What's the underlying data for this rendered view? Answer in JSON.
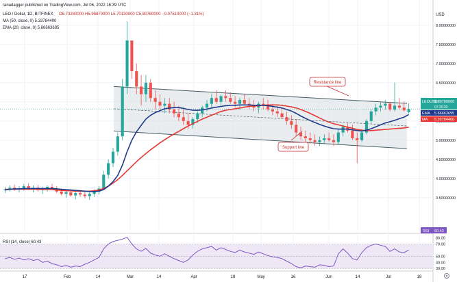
{
  "header": {
    "published": "ranadagger published on TradingView.com, Jul 06, 2022 16:39 UTC",
    "symbol": "LEO / Dollar, 1D, BITFINEX",
    "ohlc": "O5.73280000  H5.95870000  L5.70130000  C5.80780000  −0.07510000 (−1.31%)",
    "ma_line": "MA (50, close, 0)  5.33784400",
    "ema_line": "EMA (20, close, 0)  5.66663695",
    "currency": "USD"
  },
  "colors": {
    "candle_up": "#26a69a",
    "candle_down": "#ef5350",
    "ema": "#1e3a8a",
    "ma": "#e53935",
    "rsi": "#7e57c2",
    "rsi_band": "#ede7f6",
    "channel": "#455a64",
    "channel_fill": "#cfd8dc"
  },
  "annotations": {
    "resistance": "Resistance line",
    "support": "Support line"
  },
  "price_labels": {
    "symbol": "LEOUSD",
    "close": "5.80780000",
    "countdown": "07:20:20",
    "ema_tag": "EMA",
    "ema_value": "5.66663695",
    "ma_tag": "MA",
    "ma_value": "5.33784400"
  },
  "rsi": {
    "label": "RSI (14, close)  60.43",
    "tag": "RSI",
    "value": "60.43"
  },
  "chart_data": {
    "type": "candlestick",
    "price_axis": {
      "ticks": [
        "8.00000000",
        "7.50000000",
        "7.00000000",
        "6.50000000",
        "6.00000000",
        "5.50000000",
        "5.00000000",
        "4.50000000",
        "4.00000000",
        "3.50000000"
      ],
      "range": [
        3.3,
        8.05
      ]
    },
    "rsi_axis": {
      "ticks": [
        "80.00",
        "70.00",
        "50.00",
        "40.00",
        "30.00"
      ],
      "range": [
        28,
        84
      ]
    },
    "x_labels": [
      "17",
      "Feb",
      "14",
      "Mar",
      "14",
      "Apr",
      "18",
      "May",
      "16",
      "Jun",
      "14",
      "Jul",
      "18"
    ],
    "candles": [
      [
        3.7,
        3.78,
        3.62,
        3.72
      ],
      [
        3.72,
        3.82,
        3.66,
        3.76
      ],
      [
        3.76,
        3.84,
        3.68,
        3.72
      ],
      [
        3.72,
        3.8,
        3.64,
        3.74
      ],
      [
        3.74,
        3.86,
        3.68,
        3.8
      ],
      [
        3.8,
        3.88,
        3.7,
        3.72
      ],
      [
        3.72,
        3.82,
        3.64,
        3.76
      ],
      [
        3.76,
        3.84,
        3.66,
        3.7
      ],
      [
        3.7,
        3.78,
        3.6,
        3.74
      ],
      [
        3.74,
        3.82,
        3.66,
        3.78
      ],
      [
        3.78,
        3.86,
        3.7,
        3.74
      ],
      [
        3.74,
        3.8,
        3.62,
        3.66
      ],
      [
        3.66,
        3.74,
        3.56,
        3.6
      ],
      [
        3.6,
        3.7,
        3.5,
        3.64
      ],
      [
        3.64,
        3.72,
        3.52,
        3.56
      ],
      [
        3.56,
        3.66,
        3.46,
        3.62
      ],
      [
        3.62,
        3.7,
        3.52,
        3.58
      ],
      [
        3.58,
        3.66,
        3.48,
        3.54
      ],
      [
        3.54,
        3.64,
        3.44,
        3.6
      ],
      [
        3.6,
        3.72,
        3.52,
        3.66
      ],
      [
        3.66,
        3.8,
        3.58,
        3.74
      ],
      [
        3.74,
        4.2,
        3.7,
        4.1
      ],
      [
        4.1,
        4.5,
        4.0,
        4.4
      ],
      [
        4.4,
        4.8,
        4.3,
        4.7
      ],
      [
        4.7,
        5.2,
        4.6,
        5.1
      ],
      [
        5.1,
        6.6,
        5.0,
        6.4
      ],
      [
        6.4,
        8.1,
        6.2,
        7.6
      ],
      [
        7.6,
        7.6,
        6.6,
        6.8
      ],
      [
        6.8,
        7.0,
        6.2,
        6.4
      ],
      [
        6.4,
        6.7,
        5.9,
        6.2
      ],
      [
        6.2,
        6.7,
        6.0,
        6.5
      ],
      [
        6.5,
        6.6,
        6.0,
        6.1
      ],
      [
        6.1,
        6.3,
        5.8,
        6.0
      ],
      [
        6.0,
        6.2,
        5.8,
        5.9
      ],
      [
        5.9,
        6.1,
        5.7,
        5.95
      ],
      [
        5.95,
        6.1,
        5.7,
        5.8
      ],
      [
        5.8,
        6.0,
        5.6,
        5.7
      ],
      [
        5.7,
        5.9,
        5.5,
        5.6
      ],
      [
        5.6,
        5.8,
        5.4,
        5.5
      ],
      [
        5.5,
        5.7,
        5.3,
        5.4
      ],
      [
        5.4,
        5.6,
        5.3,
        5.55
      ],
      [
        5.55,
        5.75,
        5.45,
        5.7
      ],
      [
        5.7,
        5.9,
        5.6,
        5.85
      ],
      [
        5.85,
        6.05,
        5.75,
        5.95
      ],
      [
        5.95,
        6.2,
        5.85,
        6.1
      ],
      [
        6.1,
        6.3,
        5.95,
        6.0
      ],
      [
        6.0,
        6.2,
        5.9,
        6.15
      ],
      [
        6.15,
        6.3,
        6.0,
        6.1
      ],
      [
        6.1,
        6.25,
        5.95,
        6.0
      ],
      [
        6.0,
        6.15,
        5.85,
        5.95
      ],
      [
        5.95,
        6.1,
        5.8,
        6.05
      ],
      [
        6.05,
        6.2,
        5.9,
        5.95
      ],
      [
        5.95,
        6.1,
        5.8,
        5.9
      ],
      [
        5.9,
        6.05,
        5.75,
        5.85
      ],
      [
        5.85,
        6.0,
        5.7,
        5.95
      ],
      [
        5.95,
        6.1,
        5.8,
        5.9
      ],
      [
        5.9,
        6.05,
        5.75,
        5.8
      ],
      [
        5.8,
        5.95,
        5.65,
        5.75
      ],
      [
        5.75,
        5.9,
        5.6,
        5.7
      ],
      [
        5.7,
        5.85,
        5.55,
        5.6
      ],
      [
        5.6,
        5.75,
        5.4,
        5.5
      ],
      [
        5.5,
        5.65,
        5.3,
        5.4
      ],
      [
        5.4,
        5.55,
        5.1,
        5.2
      ],
      [
        5.2,
        5.35,
        5.0,
        5.1
      ],
      [
        5.1,
        5.25,
        4.95,
        5.05
      ],
      [
        5.05,
        5.2,
        4.9,
        5.0
      ],
      [
        5.0,
        5.15,
        4.85,
        4.95
      ],
      [
        4.95,
        5.1,
        4.85,
        5.0
      ],
      [
        5.0,
        5.15,
        4.9,
        5.05
      ],
      [
        5.05,
        5.2,
        4.95,
        5.0
      ],
      [
        5.0,
        5.15,
        4.85,
        4.95
      ],
      [
        4.95,
        5.3,
        4.9,
        5.2
      ],
      [
        5.2,
        5.4,
        5.1,
        5.35
      ],
      [
        5.35,
        5.45,
        5.2,
        5.25
      ],
      [
        5.25,
        5.4,
        5.0,
        5.05
      ],
      [
        5.05,
        5.2,
        4.4,
        5.0
      ],
      [
        5.0,
        5.25,
        4.95,
        5.2
      ],
      [
        5.2,
        5.55,
        5.15,
        5.5
      ],
      [
        5.5,
        5.8,
        5.45,
        5.75
      ],
      [
        5.75,
        5.95,
        5.65,
        5.85
      ],
      [
        5.85,
        6.0,
        5.75,
        5.9
      ],
      [
        5.9,
        6.05,
        5.8,
        5.95
      ],
      [
        5.95,
        6.0,
        5.75,
        5.8
      ],
      [
        5.8,
        6.5,
        5.75,
        5.9
      ],
      [
        5.9,
        6.1,
        5.8,
        5.85
      ],
      [
        5.85,
        6.0,
        5.75,
        5.78
      ],
      [
        5.73,
        5.96,
        5.7,
        5.81
      ]
    ],
    "ema20": [
      3.7,
      3.72,
      3.73,
      3.73,
      3.74,
      3.74,
      3.74,
      3.74,
      3.74,
      3.74,
      3.74,
      3.73,
      3.72,
      3.71,
      3.7,
      3.69,
      3.68,
      3.67,
      3.66,
      3.66,
      3.67,
      3.71,
      3.8,
      3.92,
      4.08,
      4.35,
      4.7,
      5.0,
      5.22,
      5.39,
      5.55,
      5.65,
      5.72,
      5.77,
      5.82,
      5.84,
      5.85,
      5.85,
      5.83,
      5.8,
      5.78,
      5.78,
      5.79,
      5.81,
      5.84,
      5.86,
      5.88,
      5.9,
      5.91,
      5.91,
      5.92,
      5.92,
      5.92,
      5.91,
      5.91,
      5.91,
      5.9,
      5.88,
      5.86,
      5.84,
      5.8,
      5.76,
      5.7,
      5.63,
      5.57,
      5.51,
      5.46,
      5.41,
      5.37,
      5.33,
      5.3,
      5.29,
      5.29,
      5.29,
      5.27,
      5.25,
      5.24,
      5.26,
      5.3,
      5.35,
      5.4,
      5.45,
      5.48,
      5.52,
      5.56,
      5.6,
      5.67
    ],
    "ma50": [
      3.72,
      3.72,
      3.72,
      3.72,
      3.72,
      3.72,
      3.72,
      3.72,
      3.71,
      3.71,
      3.71,
      3.7,
      3.69,
      3.68,
      3.68,
      3.67,
      3.67,
      3.67,
      3.67,
      3.68,
      3.7,
      3.74,
      3.8,
      3.88,
      3.97,
      4.08,
      4.2,
      4.32,
      4.44,
      4.55,
      4.65,
      4.75,
      4.84,
      4.93,
      5.01,
      5.09,
      5.16,
      5.23,
      5.3,
      5.37,
      5.43,
      5.49,
      5.55,
      5.6,
      5.65,
      5.7,
      5.75,
      5.78,
      5.8,
      5.82,
      5.84,
      5.86,
      5.88,
      5.89,
      5.9,
      5.91,
      5.92,
      5.92,
      5.92,
      5.91,
      5.89,
      5.87,
      5.84,
      5.8,
      5.75,
      5.7,
      5.64,
      5.58,
      5.52,
      5.47,
      5.43,
      5.4,
      5.37,
      5.34,
      5.31,
      5.28,
      5.26,
      5.25,
      5.25,
      5.26,
      5.27,
      5.28,
      5.29,
      5.3,
      5.31,
      5.32,
      5.34
    ],
    "rsi14": [
      46,
      48,
      45,
      47,
      44,
      46,
      43,
      45,
      40,
      42,
      38,
      36,
      33,
      35,
      32,
      34,
      33,
      37,
      40,
      44,
      48,
      62,
      70,
      74,
      76,
      78,
      81,
      70,
      62,
      58,
      63,
      55,
      52,
      50,
      54,
      50,
      46,
      43,
      40,
      44,
      52,
      58,
      62,
      64,
      66,
      60,
      64,
      61,
      58,
      56,
      60,
      57,
      55,
      53,
      57,
      54,
      51,
      49,
      48,
      46,
      42,
      38,
      33,
      31,
      34,
      33,
      32,
      36,
      35,
      33,
      34,
      54,
      62,
      55,
      46,
      44,
      56,
      64,
      68,
      70,
      68,
      66,
      58,
      62,
      57,
      56,
      60
    ],
    "channel": {
      "upper": [
        {
          "date": "Feb 23",
          "price": 6.4
        },
        {
          "date": "Jul 01",
          "price": 5.96
        }
      ],
      "lower": [
        {
          "date": "Feb 23",
          "price": 5.24
        },
        {
          "date": "Jul 01",
          "price": 4.78
        }
      ]
    }
  }
}
